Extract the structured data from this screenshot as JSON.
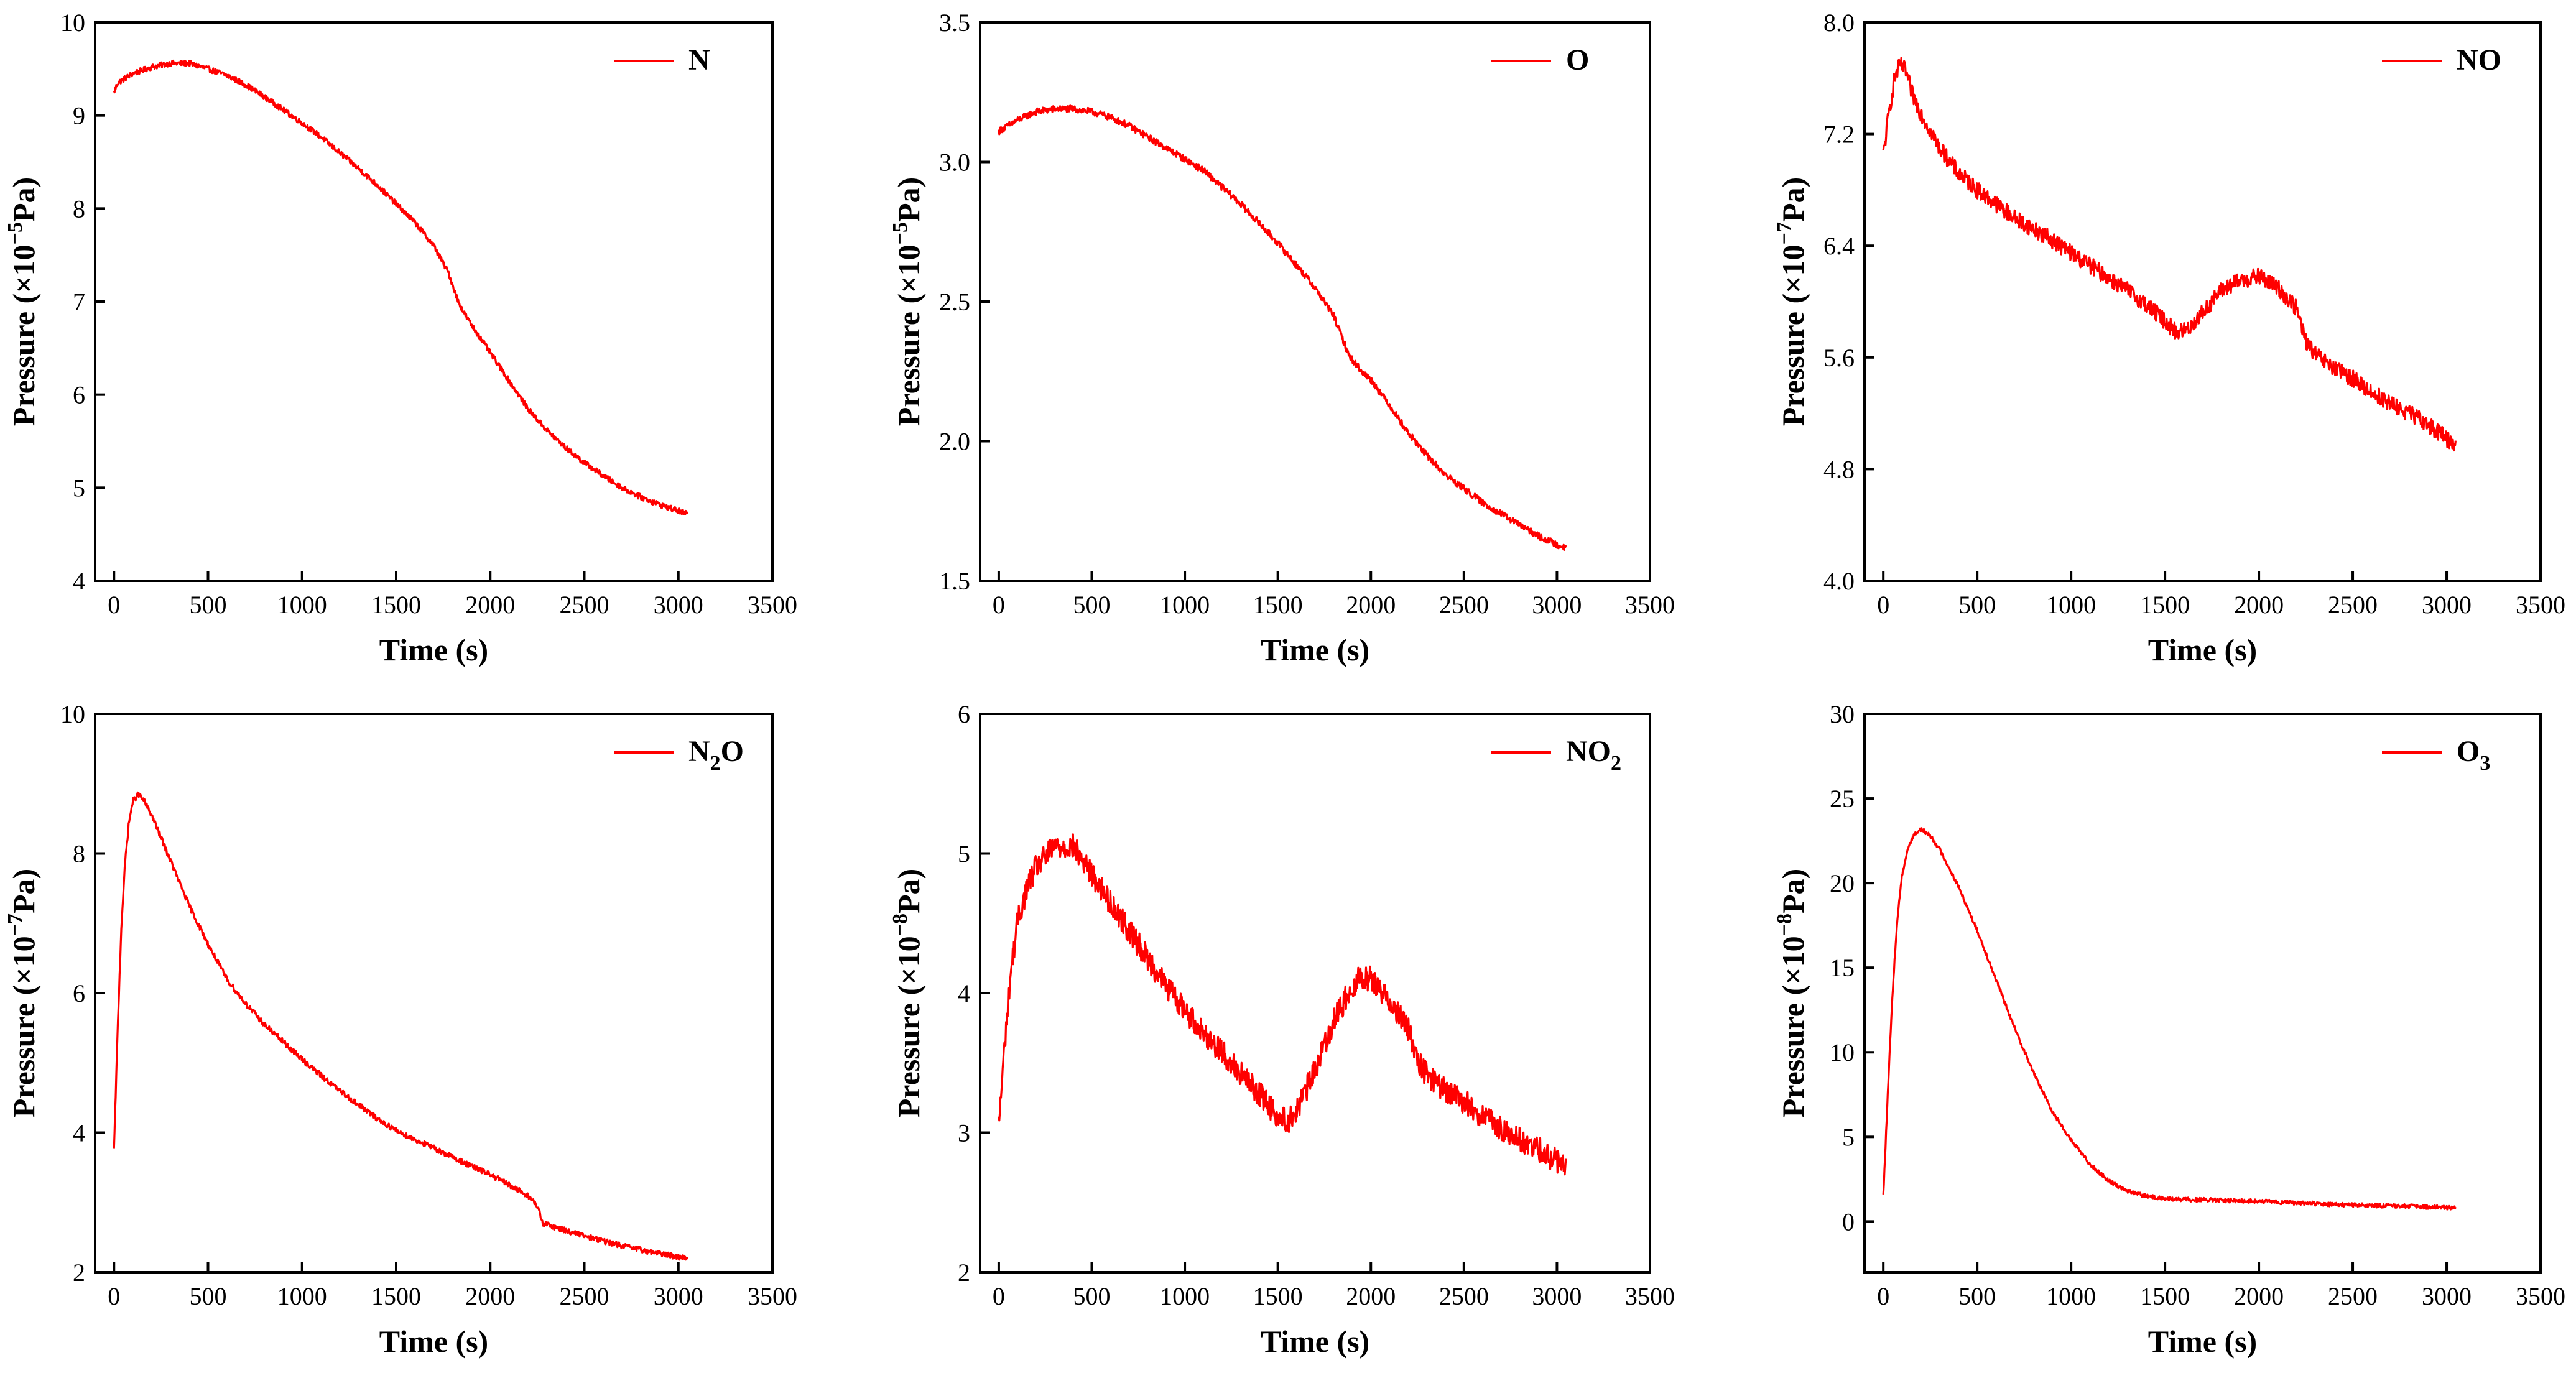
{
  "figure": {
    "series_color": "#ff0000",
    "ylabel_prefix": "Pressure (×10",
    "ylabel_suffix": "Pa)"
  },
  "chart_data": [
    {
      "type": "line",
      "id": "N",
      "legend": "N",
      "legend_sub": "",
      "xlabel": "Time (s)",
      "ylabel": "Pressure (×10⁻⁵Pa)",
      "y_exponent": "−5",
      "xlim": [
        -100,
        3500
      ],
      "xticks": [
        0,
        500,
        1000,
        1500,
        2000,
        2500,
        3000,
        3500
      ],
      "ylim": [
        4,
        10
      ],
      "yticks": [
        4,
        5,
        6,
        7,
        8,
        9,
        10
      ],
      "ytick_labels": [
        "4",
        "5",
        "6",
        "7",
        "8",
        "9",
        "10"
      ],
      "noise": 0.03,
      "series": [
        {
          "name": "N",
          "x": [
            0,
            20,
            100,
            200,
            300,
            400,
            500,
            600,
            700,
            800,
            900,
            1000,
            1100,
            1200,
            1300,
            1400,
            1500,
            1600,
            1700,
            1780,
            1830,
            1860,
            1900,
            2000,
            2100,
            2200,
            2300,
            2400,
            2500,
            2600,
            2700,
            2800,
            2900,
            3000,
            3050
          ],
          "y": [
            9.25,
            9.35,
            9.45,
            9.52,
            9.56,
            9.56,
            9.5,
            9.43,
            9.33,
            9.2,
            9.06,
            8.92,
            8.77,
            8.6,
            8.43,
            8.25,
            8.05,
            7.85,
            7.6,
            7.3,
            7.0,
            6.88,
            6.75,
            6.45,
            6.15,
            5.85,
            5.62,
            5.43,
            5.27,
            5.13,
            5.0,
            4.9,
            4.82,
            4.75,
            4.72
          ]
        }
      ]
    },
    {
      "type": "line",
      "id": "O",
      "legend": "O",
      "legend_sub": "",
      "xlabel": "Time (s)",
      "ylabel": "Pressure (×10⁻⁵Pa)",
      "y_exponent": "−5",
      "xlim": [
        -100,
        3500
      ],
      "xticks": [
        0,
        500,
        1000,
        1500,
        2000,
        2500,
        3000,
        3500
      ],
      "ylim": [
        1.5,
        3.5
      ],
      "yticks": [
        1.5,
        2.0,
        2.5,
        3.0,
        3.5
      ],
      "ytick_labels": [
        "1.5",
        "2.0",
        "2.5",
        "3.0",
        "3.5"
      ],
      "noise": 0.012,
      "series": [
        {
          "name": "O",
          "x": [
            0,
            50,
            100,
            200,
            300,
            400,
            500,
            600,
            700,
            800,
            900,
            1000,
            1100,
            1200,
            1300,
            1400,
            1500,
            1600,
            1700,
            1800,
            1840,
            1880,
            1950,
            2000,
            2100,
            2200,
            2300,
            2400,
            2500,
            2600,
            2700,
            2800,
            2900,
            3000,
            3050
          ],
          "y": [
            3.11,
            3.13,
            3.15,
            3.18,
            3.19,
            3.19,
            3.18,
            3.16,
            3.13,
            3.09,
            3.05,
            3.01,
            2.97,
            2.91,
            2.85,
            2.78,
            2.71,
            2.63,
            2.55,
            2.45,
            2.38,
            2.31,
            2.25,
            2.22,
            2.13,
            2.03,
            1.95,
            1.88,
            1.83,
            1.78,
            1.74,
            1.7,
            1.66,
            1.63,
            1.62
          ]
        }
      ]
    },
    {
      "type": "line",
      "id": "NO",
      "legend": "NO",
      "legend_sub": "",
      "xlabel": "Time (s)",
      "ylabel": "Pressure (×10⁻⁷Pa)",
      "y_exponent": "−7",
      "xlim": [
        -100,
        3500
      ],
      "xticks": [
        0,
        500,
        1000,
        1500,
        2000,
        2500,
        3000,
        3500
      ],
      "ylim": [
        4.0,
        8.0
      ],
      "yticks": [
        4.0,
        4.8,
        5.6,
        6.4,
        7.2,
        8.0
      ],
      "ytick_labels": [
        "4.0",
        "4.8",
        "5.6",
        "6.4",
        "7.2",
        "8.0"
      ],
      "noise": 0.06,
      "series": [
        {
          "name": "NO",
          "x": [
            0,
            30,
            60,
            90,
            120,
            150,
            200,
            300,
            400,
            500,
            600,
            700,
            800,
            900,
            1000,
            1100,
            1200,
            1300,
            1400,
            1500,
            1560,
            1620,
            1700,
            1800,
            1900,
            2000,
            2100,
            2200,
            2250,
            2300,
            2400,
            2500,
            2600,
            2700,
            2800,
            2900,
            3000,
            3050
          ],
          "y": [
            7.05,
            7.35,
            7.6,
            7.7,
            7.65,
            7.5,
            7.35,
            7.1,
            6.92,
            6.8,
            6.7,
            6.6,
            6.52,
            6.44,
            6.35,
            6.26,
            6.17,
            6.08,
            5.98,
            5.86,
            5.78,
            5.8,
            5.92,
            6.08,
            6.15,
            6.18,
            6.1,
            5.95,
            5.72,
            5.62,
            5.52,
            5.45,
            5.35,
            5.27,
            5.2,
            5.12,
            5.02,
            4.97
          ]
        }
      ]
    },
    {
      "type": "line",
      "id": "N2O",
      "legend": "N",
      "legend_sub": "2",
      "legend_tail": "O",
      "xlabel": "Time (s)",
      "ylabel": "Pressure (×10⁻⁷Pa)",
      "y_exponent": "−7",
      "xlim": [
        -100,
        3500
      ],
      "xticks": [
        0,
        500,
        1000,
        1500,
        2000,
        2500,
        3000,
        3500
      ],
      "ylim": [
        2,
        10
      ],
      "yticks": [
        2,
        4,
        6,
        8,
        10
      ],
      "ytick_labels": [
        "2",
        "4",
        "6",
        "8",
        "10"
      ],
      "noise": 0.04,
      "series": [
        {
          "name": "N2O",
          "x": [
            0,
            20,
            40,
            60,
            80,
            100,
            130,
            160,
            200,
            300,
            400,
            500,
            600,
            700,
            800,
            900,
            1000,
            1100,
            1200,
            1300,
            1400,
            1500,
            1600,
            1700,
            1800,
            1900,
            2000,
            2100,
            2200,
            2250,
            2280,
            2400,
            2500,
            2600,
            2700,
            2800,
            2900,
            3000,
            3050
          ],
          "y": [
            3.75,
            5.5,
            7.0,
            7.9,
            8.45,
            8.75,
            8.85,
            8.75,
            8.55,
            7.9,
            7.25,
            6.7,
            6.2,
            5.85,
            5.55,
            5.3,
            5.05,
            4.82,
            4.6,
            4.4,
            4.2,
            4.03,
            3.9,
            3.78,
            3.65,
            3.52,
            3.4,
            3.25,
            3.1,
            2.95,
            2.7,
            2.6,
            2.52,
            2.45,
            2.38,
            2.32,
            2.27,
            2.22,
            2.2
          ]
        }
      ]
    },
    {
      "type": "line",
      "id": "NO2",
      "legend": "NO",
      "legend_sub": "2",
      "xlabel": "Time (s)",
      "ylabel": "Pressure (×10⁻⁸Pa)",
      "y_exponent": "−8",
      "xlim": [
        -100,
        3500
      ],
      "xticks": [
        0,
        500,
        1000,
        1500,
        2000,
        2500,
        3000,
        3500
      ],
      "ylim": [
        2,
        6
      ],
      "yticks": [
        2,
        3,
        4,
        5,
        6
      ],
      "ytick_labels": [
        "2",
        "3",
        "4",
        "5",
        "6"
      ],
      "noise": 0.09,
      "series": [
        {
          "name": "NO2",
          "x": [
            0,
            30,
            60,
            100,
            150,
            200,
            300,
            400,
            500,
            600,
            700,
            800,
            900,
            1000,
            1100,
            1200,
            1300,
            1400,
            1500,
            1550,
            1600,
            1700,
            1800,
            1900,
            1950,
            2000,
            2100,
            2200,
            2250,
            2300,
            2400,
            2500,
            2600,
            2700,
            2800,
            2900,
            3000,
            3050
          ],
          "y": [
            3.05,
            3.6,
            4.1,
            4.5,
            4.75,
            4.9,
            5.05,
            5.05,
            4.85,
            4.65,
            4.45,
            4.25,
            4.05,
            3.88,
            3.72,
            3.58,
            3.42,
            3.28,
            3.12,
            3.08,
            3.15,
            3.45,
            3.8,
            4.05,
            4.12,
            4.1,
            3.95,
            3.75,
            3.5,
            3.42,
            3.3,
            3.22,
            3.12,
            3.02,
            2.95,
            2.88,
            2.8,
            2.77
          ]
        }
      ]
    },
    {
      "type": "line",
      "id": "O3",
      "legend": "O",
      "legend_sub": "3",
      "xlabel": "Time (s)",
      "ylabel": "Pressure (×10⁻⁸Pa)",
      "y_exponent": "−8",
      "xlim": [
        -100,
        3500
      ],
      "xticks": [
        0,
        500,
        1000,
        1500,
        2000,
        2500,
        3000,
        3500
      ],
      "ylim": [
        -3,
        30
      ],
      "yticks": [
        0,
        5,
        10,
        15,
        20,
        25,
        30
      ],
      "ytick_labels": [
        "0",
        "5",
        "10",
        "15",
        "20",
        "25",
        "30"
      ],
      "noise": 0.12,
      "series": [
        {
          "name": "O3",
          "x": [
            0,
            20,
            40,
            60,
            80,
            100,
            130,
            160,
            200,
            250,
            300,
            400,
            500,
            600,
            700,
            800,
            900,
            1000,
            1100,
            1200,
            1300,
            1400,
            1500,
            1600,
            1700,
            1800,
            2000,
            2200,
            2400,
            2600,
            2800,
            3000,
            3050
          ],
          "y": [
            1.5,
            6.5,
            11.5,
            15.5,
            18.5,
            20.5,
            22.0,
            22.8,
            23.2,
            22.8,
            22.0,
            19.8,
            17.2,
            14.3,
            11.4,
            8.8,
            6.5,
            4.8,
            3.4,
            2.4,
            1.8,
            1.5,
            1.35,
            1.3,
            1.28,
            1.25,
            1.2,
            1.1,
            1.0,
            0.95,
            0.9,
            0.82,
            0.8
          ]
        }
      ]
    }
  ]
}
